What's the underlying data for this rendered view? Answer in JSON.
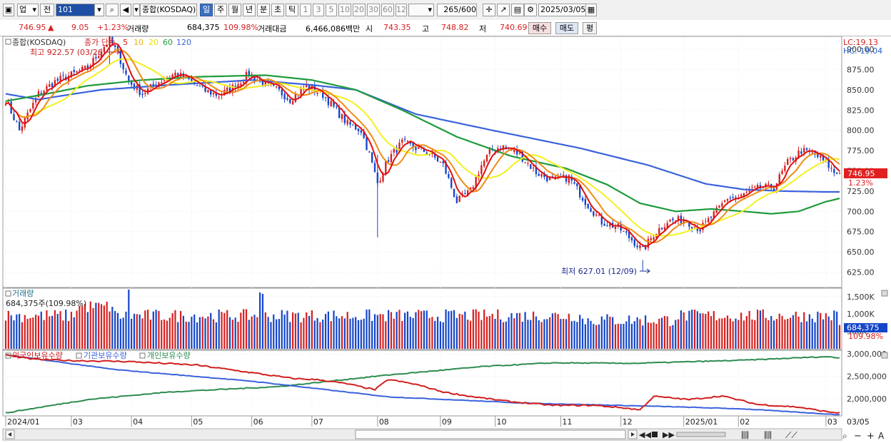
{
  "toolbar": {
    "sector_select": "업",
    "prev_btn": "전",
    "code_input": "101",
    "name": "종합(KOSDAQ)",
    "periods": [
      "일",
      "주",
      "월",
      "년",
      "분",
      "초",
      "틱"
    ],
    "minutes": [
      "1",
      "3",
      "5",
      "10",
      "20",
      "30",
      "60",
      "120"
    ],
    "count_value": "265",
    "count_total": "/600",
    "date_value": "2025/03/05"
  },
  "info": {
    "price": "746.95",
    "change": "9.05",
    "change_pct": "+1.23%",
    "volume_label": "거래량",
    "volume": "684,375",
    "volume_pct": "109.98%",
    "amount_label": "거래대금",
    "amount": "6,466,086백만",
    "open_label": "시",
    "open": "743.35",
    "high_label": "고",
    "high": "748.82",
    "low_label": "저",
    "low": "740.69",
    "buy_btn": "매수",
    "sell_btn": "매도",
    "eval_btn": "평"
  },
  "colors": {
    "up": "#d62020",
    "down": "#1446c8",
    "ma5": "#e01010",
    "ma10": "#f08c14",
    "ma20": "#f2f01e",
    "ma60": "#1e9a3c",
    "ma120": "#3a62dc",
    "foreign": "#d21e1e",
    "institution": "#3a62dc",
    "individual": "#2d8c50"
  },
  "chart_data": [
    {
      "type": "candlestick",
      "panel": "price",
      "name": "종합(KOSDAQ)",
      "legend": {
        "price_label": "종가 단순",
        "ma_periods": [
          "5",
          "10",
          "20",
          "60",
          "120"
        ]
      },
      "ylim": [
        607,
        915
      ],
      "yticks": [
        "900.00",
        "875.00",
        "850.00",
        "825.00",
        "800.00",
        "775.00",
        "750.00",
        "725.00",
        "700.00",
        "675.00",
        "650.00",
        "625.00"
      ],
      "lc_label": "LC:19.13",
      "hc_label": "HC:-19.04",
      "current_price": "746.95",
      "current_pct": "1.23%",
      "annotations": {
        "high": "최고 922.57 (03/26)",
        "low": "최저 627.01 (12/09)"
      },
      "close_anchors": [
        [
          0,
          838
        ],
        [
          5,
          800
        ],
        [
          12,
          845
        ],
        [
          18,
          860
        ],
        [
          25,
          870
        ],
        [
          30,
          877
        ],
        [
          34,
          895
        ],
        [
          38,
          912
        ],
        [
          41,
          895
        ],
        [
          45,
          860
        ],
        [
          50,
          845
        ],
        [
          56,
          860
        ],
        [
          62,
          870
        ],
        [
          67,
          862
        ],
        [
          72,
          850
        ],
        [
          78,
          843
        ],
        [
          84,
          855
        ],
        [
          89,
          870
        ],
        [
          94,
          858
        ],
        [
          100,
          848
        ],
        [
          104,
          838
        ],
        [
          110,
          855
        ],
        [
          116,
          844
        ],
        [
          120,
          828
        ],
        [
          125,
          808
        ],
        [
          130,
          800
        ],
        [
          133,
          770
        ],
        [
          136,
          735
        ],
        [
          140,
          765
        ],
        [
          145,
          785
        ],
        [
          150,
          778
        ],
        [
          155,
          772
        ],
        [
          160,
          757
        ],
        [
          165,
          712
        ],
        [
          170,
          725
        ],
        [
          174,
          757
        ],
        [
          178,
          777
        ],
        [
          182,
          780
        ],
        [
          188,
          770
        ],
        [
          194,
          748
        ],
        [
          200,
          738
        ],
        [
          206,
          742
        ],
        [
          212,
          712
        ],
        [
          218,
          687
        ],
        [
          224,
          680
        ],
        [
          229,
          665
        ],
        [
          233,
          652
        ],
        [
          237,
          672
        ],
        [
          242,
          688
        ],
        [
          248,
          690
        ],
        [
          254,
          678
        ],
        [
          260,
          700
        ],
        [
          264,
          717
        ],
        [
          268,
          716
        ],
        [
          272,
          725
        ],
        [
          276,
          729
        ],
        [
          281,
          730
        ],
        [
          286,
          760
        ],
        [
          291,
          775
        ],
        [
          296,
          770
        ],
        [
          300,
          760
        ],
        [
          303,
          748
        ],
        [
          305,
          746.95
        ]
      ],
      "ma120_anchors": [
        [
          0,
          845
        ],
        [
          12,
          838
        ],
        [
          25,
          845
        ],
        [
          35,
          850
        ],
        [
          60,
          856
        ],
        [
          90,
          862
        ],
        [
          112,
          856
        ],
        [
          128,
          850
        ],
        [
          150,
          820
        ],
        [
          178,
          800
        ],
        [
          210,
          778
        ],
        [
          235,
          757
        ],
        [
          256,
          734
        ],
        [
          270,
          727
        ],
        [
          285,
          725
        ],
        [
          300,
          724
        ],
        [
          305,
          724
        ]
      ],
      "ma60_anchors": [
        [
          0,
          836
        ],
        [
          15,
          845
        ],
        [
          30,
          855
        ],
        [
          50,
          862
        ],
        [
          70,
          866
        ],
        [
          95,
          868
        ],
        [
          112,
          862
        ],
        [
          128,
          850
        ],
        [
          145,
          825
        ],
        [
          165,
          792
        ],
        [
          185,
          768
        ],
        [
          205,
          753
        ],
        [
          220,
          733
        ],
        [
          232,
          710
        ],
        [
          245,
          700
        ],
        [
          258,
          703
        ],
        [
          270,
          700
        ],
        [
          280,
          697
        ],
        [
          290,
          700
        ],
        [
          300,
          712
        ],
        [
          305,
          716
        ]
      ]
    },
    {
      "type": "bar",
      "panel": "volume",
      "name": "거래량",
      "readout": "684,375주(109.98%)",
      "ylim": [
        0,
        1700
      ],
      "yticks": [
        "1,500K",
        "1,000K",
        "500K"
      ],
      "current": "684,375",
      "current_pct": "109.98%",
      "unit": "K"
    },
    {
      "type": "line",
      "panel": "holdings",
      "series_names": [
        "외국인보유수량",
        "기관보유수량",
        "개인보유수량"
      ],
      "ylim": [
        1630000,
        3050000
      ],
      "yticks": [
        "3,000,000",
        "2,500,000",
        "2,000,000"
      ],
      "foreign_anchors": [
        [
          0,
          2980000
        ],
        [
          10,
          2880000
        ],
        [
          25,
          2850000
        ],
        [
          45,
          2830000
        ],
        [
          70,
          2750000
        ],
        [
          90,
          2580000
        ],
        [
          105,
          2450000
        ],
        [
          115,
          2420000
        ],
        [
          125,
          2330000
        ],
        [
          135,
          2200000
        ],
        [
          140,
          2430000
        ],
        [
          150,
          2320000
        ],
        [
          160,
          2150000
        ],
        [
          170,
          2050000
        ],
        [
          185,
          1930000
        ],
        [
          200,
          1850000
        ],
        [
          215,
          1850000
        ],
        [
          225,
          1800000
        ],
        [
          232,
          1750000
        ],
        [
          237,
          2050000
        ],
        [
          250,
          1980000
        ],
        [
          262,
          2060000
        ],
        [
          275,
          1870000
        ],
        [
          290,
          1810000
        ],
        [
          300,
          1710000
        ],
        [
          305,
          1680000
        ]
      ],
      "institution_anchors": [
        [
          0,
          2980000
        ],
        [
          40,
          2650000
        ],
        [
          90,
          2390000
        ],
        [
          140,
          2040000
        ],
        [
          190,
          1900000
        ],
        [
          237,
          1830000
        ],
        [
          270,
          1770000
        ],
        [
          305,
          1640000
        ]
      ],
      "individual_anchors": [
        [
          0,
          1680000
        ],
        [
          30,
          1980000
        ],
        [
          60,
          2150000
        ],
        [
          100,
          2270000
        ],
        [
          140,
          2530000
        ],
        [
          175,
          2720000
        ],
        [
          200,
          2800000
        ],
        [
          230,
          2790000
        ],
        [
          270,
          2860000
        ],
        [
          300,
          2940000
        ],
        [
          305,
          2910000
        ]
      ]
    }
  ],
  "x_axis": {
    "month_labels": [
      "2024/01",
      "03",
      "04",
      "05",
      "06",
      "07",
      "08",
      "09",
      "10",
      "11",
      "12",
      "2025/01",
      "02",
      "03",
      "03/05"
    ]
  }
}
